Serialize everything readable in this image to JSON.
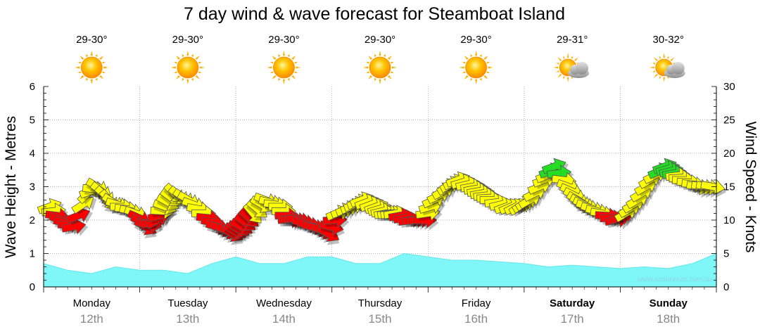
{
  "chart_data": {
    "type": "line",
    "title": "7 day wind & wave forecast for Steamboat Island",
    "ylabel_left": "Wave Height - Metres",
    "ylabel_right": "Wind Speed - Knots",
    "ylim_left": [
      0,
      6
    ],
    "ylim_right": [
      0,
      30
    ],
    "yticks_left": [
      "0",
      "1",
      "2",
      "3",
      "4",
      "5",
      "6"
    ],
    "yticks_right": [
      "0",
      "5",
      "10",
      "15",
      "20",
      "25",
      "30"
    ],
    "grid": true,
    "watermark": "www.seabreeze.com.au",
    "days": [
      {
        "day": "Monday",
        "date": "12th",
        "temp": "29-30°",
        "icon": "sun-icon",
        "bold": false
      },
      {
        "day": "Tuesday",
        "date": "13th",
        "temp": "29-30°",
        "icon": "sun-icon",
        "bold": false
      },
      {
        "day": "Wednesday",
        "date": "14th",
        "temp": "29-30°",
        "icon": "sun-icon",
        "bold": false
      },
      {
        "day": "Thursday",
        "date": "15th",
        "temp": "29-30°",
        "icon": "sun-icon",
        "bold": false
      },
      {
        "day": "Friday",
        "date": "16th",
        "temp": "29-30°",
        "icon": "sun-icon",
        "bold": false
      },
      {
        "day": "Saturday",
        "date": "17th",
        "temp": "29-31°",
        "icon": "partly-cloudy-icon",
        "bold": true
      },
      {
        "day": "Sunday",
        "date": "18th",
        "temp": "30-32°",
        "icon": "partly-cloudy-icon",
        "bold": true
      }
    ],
    "wave_series": {
      "name": "Wave height",
      "color": "#7ff6f8",
      "x": [
        0,
        0.25,
        0.5,
        0.75,
        1.0,
        1.25,
        1.5,
        1.75,
        2.0,
        2.25,
        2.5,
        2.75,
        3.0,
        3.25,
        3.5,
        3.75,
        4.0,
        4.25,
        4.5,
        4.75,
        5.0,
        5.25,
        5.5,
        5.75,
        6.0,
        6.25,
        6.5,
        6.75,
        7.0
      ],
      "y": [
        0.7,
        0.5,
        0.4,
        0.6,
        0.5,
        0.5,
        0.4,
        0.7,
        0.9,
        0.7,
        0.7,
        0.9,
        0.9,
        0.7,
        0.7,
        1.0,
        0.9,
        0.8,
        0.8,
        0.75,
        0.7,
        0.6,
        0.65,
        0.6,
        0.55,
        0.6,
        0.55,
        0.7,
        1.0
      ]
    },
    "wind_series": {
      "name": "Wind speed",
      "x": [
        0.0,
        0.12,
        0.25,
        0.4,
        0.5,
        0.62,
        0.75,
        0.9,
        1.0,
        1.12,
        1.2,
        1.3,
        1.45,
        1.6,
        1.75,
        1.9,
        2.0,
        2.12,
        2.25,
        2.4,
        2.5,
        2.6,
        2.75,
        2.9,
        3.0,
        3.15,
        3.25,
        3.4,
        3.5,
        3.6,
        3.75,
        3.9,
        4.0,
        4.15,
        4.25,
        4.4,
        4.5,
        4.6,
        4.75,
        4.9,
        5.0,
        5.15,
        5.25,
        5.4,
        5.5,
        5.6,
        5.75,
        5.9,
        6.0,
        6.12,
        6.25,
        6.4,
        6.5,
        6.6,
        6.75,
        6.9
      ],
      "speed": [
        12,
        10,
        9,
        14,
        15,
        13,
        12,
        11,
        9,
        10,
        12,
        14,
        13,
        11,
        9,
        8,
        9,
        11,
        13,
        12,
        10,
        10,
        9,
        8,
        11,
        12,
        13,
        12,
        11,
        11,
        10,
        10,
        13,
        15,
        16,
        15,
        14,
        13,
        12,
        12,
        13,
        16,
        18,
        15,
        13,
        12,
        11,
        10,
        11,
        13,
        16,
        18,
        17,
        16,
        15,
        15
      ],
      "direction_deg": [
        250,
        290,
        260,
        225,
        300,
        320,
        270,
        290,
        300,
        240,
        290,
        315,
        300,
        270,
        285,
        300,
        300,
        320,
        290,
        270,
        270,
        280,
        280,
        300,
        250,
        250,
        250,
        250,
        260,
        260,
        260,
        270,
        245,
        240,
        250,
        260,
        260,
        270,
        250,
        240,
        240,
        250,
        250,
        290,
        300,
        290,
        280,
        260,
        240,
        240,
        240,
        250,
        260,
        270,
        280,
        280
      ],
      "color_bands": {
        "red_below": 11,
        "yellow_below": 17,
        "green_at_or_above": 17
      },
      "colors": {
        "red": "#ff0000",
        "yellow": "#ffff00",
        "green": "#22dd22"
      }
    }
  }
}
